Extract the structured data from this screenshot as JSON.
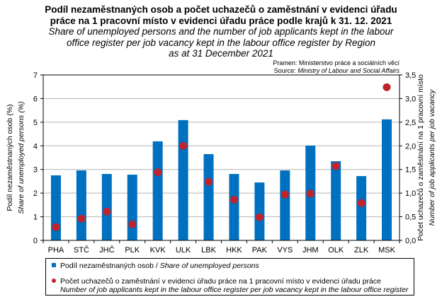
{
  "chart_data": {
    "type": "bar+scatter",
    "title_cz": [
      "Podíl nezaměstnaných osob a počet uchazečů o zaměstnání v evidenci úřadu",
      "práce na 1 pracovní místo v evidenci úřadu práce podle krajů k 31. 12. 2021"
    ],
    "title_en": [
      "Share of unemployed persons and the number of job applicants kept in the labour",
      "office register per job vacancy kept in the labour office register by Region",
      "as at 31 December 2021"
    ],
    "source_cz": "Pramen: Ministerstvo práce a sociálních věcí",
    "source_en_label": "Source:",
    "source_en": "Ministry of Labour and Social Affairs",
    "categories": [
      "PHA",
      "STČ",
      "JHČ",
      "PLK",
      "KVK",
      "ULK",
      "LBK",
      "HKK",
      "PAK",
      "VYS",
      "JHM",
      "OLK",
      "ZLK",
      "MSK"
    ],
    "series": [
      {
        "name": "Podíl nezaměstnaných osob",
        "name_en": "Share of unemployed persons",
        "type": "bar",
        "axis": "left",
        "color": "#0070c0",
        "values": [
          2.75,
          2.96,
          2.81,
          2.78,
          4.19,
          5.09,
          3.65,
          2.81,
          2.45,
          2.96,
          4.01,
          3.35,
          2.72,
          5.12
        ]
      },
      {
        "name": "Počet uchazečů o zaměstnání v evidenci úřadu práce na 1 pracovní místo v evidenci úřadu práce",
        "name_en": "Number of job applicants kept in the labour office register per job vacancy kept in the labour office register",
        "type": "scatter",
        "axis": "right",
        "color": "#c0232b",
        "values": [
          0.28,
          0.46,
          0.61,
          0.34,
          1.44,
          2.0,
          1.24,
          0.86,
          0.49,
          0.97,
          0.99,
          1.57,
          0.79,
          3.24
        ]
      }
    ],
    "y_left": {
      "label_cz": "Podíl nezaměstnaných osob (%)",
      "label_en": "Share of unemployed persons (%)",
      "lim": [
        0,
        7
      ],
      "ticks": [
        "0",
        "1",
        "2",
        "3",
        "4",
        "5",
        "6",
        "7"
      ]
    },
    "y_right": {
      "label_cz": "Počet uchazečů o zaměstnání na 1 pracovní místo",
      "label_en": "Number of job applicants per job vacancy",
      "lim": [
        0,
        3.5
      ],
      "ticks": [
        "0,0",
        "0,5",
        "1,0",
        "1,5",
        "2,0",
        "2,5",
        "3,0",
        "3,5"
      ]
    },
    "grid": true,
    "legend_position": "bottom"
  }
}
